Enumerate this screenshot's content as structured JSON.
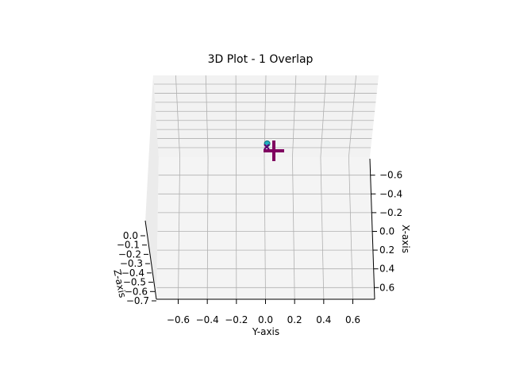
{
  "chart_data": {
    "type": "scatter",
    "projection": "3d",
    "title": "3D Plot - 1 Overlap",
    "xlabel": "X-axis",
    "ylabel": "Y-axis",
    "zlabel": "Z-axis",
    "x_ticks": [
      "−0.6",
      "−0.4",
      "−0.2",
      "0.0",
      "0.2",
      "0.4",
      "0.6"
    ],
    "y_ticks": [
      "−0.6",
      "−0.4",
      "−0.2",
      "0.0",
      "0.2",
      "0.4",
      "0.6"
    ],
    "z_ticks": [
      "0.0",
      "−0.1",
      "−0.2",
      "−0.3",
      "−0.4",
      "−0.5",
      "−0.6",
      "−0.7"
    ],
    "xlim": [
      -0.75,
      0.75
    ],
    "ylim": [
      -0.75,
      0.75
    ],
    "zlim": [
      -0.7,
      0.0
    ],
    "grid": true,
    "series": [
      {
        "marker": "+",
        "color": "#800060",
        "points": [
          {
            "x": 0.0,
            "y": 0.05,
            "z": 0.0
          }
        ]
      },
      {
        "marker": "o",
        "color": "#20b2c0",
        "points": [
          {
            "x": 0.0,
            "y": -0.01,
            "z": 0.0
          }
        ]
      },
      {
        "marker": "x",
        "color": "#5a0070",
        "points": [
          {
            "x": 0.0,
            "y": 0.0,
            "z": 0.0
          }
        ]
      }
    ]
  }
}
